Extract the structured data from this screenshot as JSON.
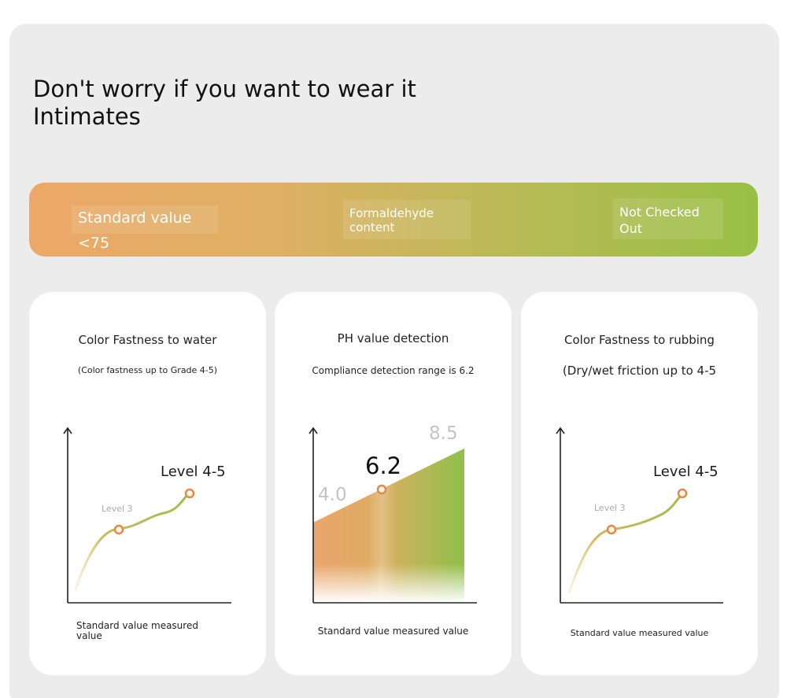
{
  "headline": {
    "line1": "Don't worry if you want to wear it",
    "line2": "Intimates"
  },
  "banner": {
    "gradient_colors": [
      "#eca868",
      "#98c044"
    ],
    "items": [
      "Standard value <75",
      "Formaldehyde content",
      "Not Checked Out"
    ]
  },
  "cards": [
    {
      "title": "Color Fastness to water",
      "subtitle": "(Color fastness up to Grade 4-5)",
      "caption": "Standard value measured value"
    },
    {
      "title": "PH value detection",
      "subtitle": "Compliance detection range is 6.2",
      "caption": "Standard value measured value"
    },
    {
      "title": "Color Fastness to rubbing",
      "subtitle": "(Dry/wet friction up to 4-5",
      "caption": "Standard value measured value"
    }
  ],
  "chart_data": [
    {
      "type": "line",
      "title": "Color Fastness to water",
      "xlabel": "Standard value measured value",
      "annotations": [
        "Level 3",
        "Level 4-5"
      ],
      "points": [
        {
          "label": "Level 3",
          "level": 3
        },
        {
          "label": "Level 4-5",
          "level": 4.5
        }
      ]
    },
    {
      "type": "area",
      "title": "PH value detection",
      "xlabel": "Standard value measured value",
      "values": [
        4.0,
        6.2,
        8.5
      ],
      "highlight": 6.2,
      "colors": [
        "#eba56c",
        "#8fc04a"
      ]
    },
    {
      "type": "line",
      "title": "Color Fastness to rubbing",
      "xlabel": "Standard value measured value",
      "annotations": [
        "Level 3",
        "Level 4-5"
      ],
      "points": [
        {
          "label": "Level 3",
          "level": 3
        },
        {
          "label": "Level 4-5",
          "level": 4.5
        }
      ]
    }
  ]
}
